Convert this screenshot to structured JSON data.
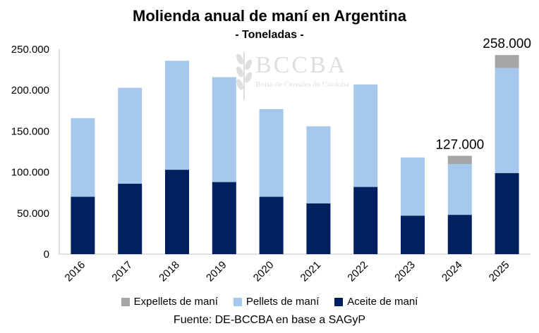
{
  "chart_data": {
    "type": "bar",
    "stacked": true,
    "title": "Molienda anual de maní en Argentina",
    "subtitle": "- Toneladas -",
    "categories": [
      "2016",
      "2017",
      "2018",
      "2019",
      "2020",
      "2021",
      "2022",
      "2023",
      "2024",
      "2025"
    ],
    "series": [
      {
        "name": "Aceite de maní",
        "color": "#002060",
        "values": [
          70000,
          86000,
          103000,
          88000,
          70000,
          62000,
          82000,
          47000,
          48000,
          99000
        ]
      },
      {
        "name": "Pellets de maní",
        "color": "#a6c8ec",
        "values": [
          96000,
          117000,
          133000,
          128000,
          107000,
          94000,
          125000,
          71000,
          62000,
          128000
        ]
      },
      {
        "name": "Expellets de maní",
        "color": "#a5a5a5",
        "values": [
          0,
          0,
          0,
          0,
          0,
          0,
          0,
          0,
          10000,
          16000
        ]
      }
    ],
    "annotations": [
      {
        "category": "2024",
        "text": "127.000"
      },
      {
        "category": "2025",
        "text": "258.000"
      }
    ],
    "y_ticks": [
      "0",
      "50.000",
      "100.000",
      "150.000",
      "200.000",
      "250.000"
    ],
    "ylim": [
      0,
      250000
    ],
    "legend_order": [
      "Expellets de maní",
      "Pellets de maní",
      "Aceite de maní"
    ],
    "source": "Fuente: DE-BCCBA en base a SAGyP"
  },
  "watermark": {
    "logo": "BCCBA",
    "subtitle": "Bolsa de Cereales de Córdoba"
  }
}
